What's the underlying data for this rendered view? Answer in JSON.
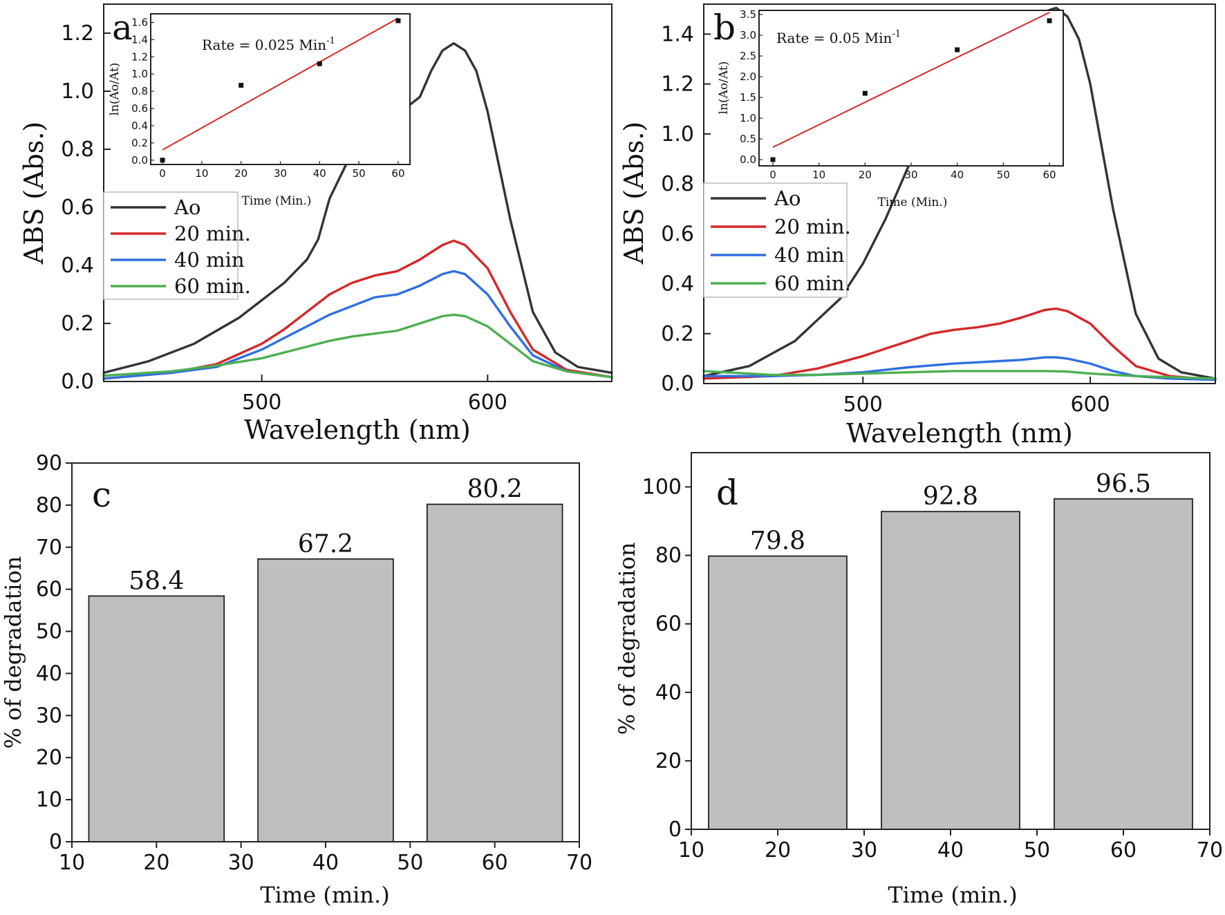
{
  "chart_data": [
    {
      "id": "a",
      "type": "line",
      "panel_label": "a",
      "xlabel": "Wavelength (nm)",
      "ylabel": "ABS (Abs.)",
      "xlim": [
        430,
        655
      ],
      "ylim": [
        0,
        1.3
      ],
      "xticks": [
        500,
        600
      ],
      "yticks": [
        0.0,
        0.2,
        0.4,
        0.6,
        0.8,
        1.0,
        1.2
      ],
      "ytick_labels": [
        "0.0",
        "0.2",
        "0.4",
        "0.6",
        "0.8",
        "1.0",
        "1.2"
      ],
      "legend": [
        "Ao",
        "20 min.",
        "40 min",
        "60 min."
      ],
      "legend_position": "mid-left",
      "series": [
        {
          "name": "Ao",
          "color": "#333333",
          "x": [
            430,
            450,
            470,
            490,
            500,
            510,
            520,
            525,
            530,
            540,
            550,
            560,
            570,
            575,
            580,
            585,
            590,
            595,
            600,
            610,
            620,
            630,
            640,
            655
          ],
          "y": [
            0.03,
            0.07,
            0.13,
            0.22,
            0.28,
            0.34,
            0.42,
            0.49,
            0.63,
            0.79,
            0.87,
            0.92,
            0.98,
            1.07,
            1.14,
            1.165,
            1.14,
            1.07,
            0.93,
            0.56,
            0.24,
            0.1,
            0.05,
            0.03
          ]
        },
        {
          "name": "20 min.",
          "color": "#d62728",
          "x": [
            430,
            460,
            480,
            500,
            510,
            520,
            530,
            540,
            550,
            560,
            570,
            580,
            585,
            590,
            600,
            610,
            620,
            635,
            655
          ],
          "y": [
            0.01,
            0.03,
            0.06,
            0.13,
            0.18,
            0.24,
            0.3,
            0.34,
            0.365,
            0.38,
            0.42,
            0.47,
            0.485,
            0.47,
            0.39,
            0.24,
            0.11,
            0.04,
            0.015
          ]
        },
        {
          "name": "40 min",
          "color": "#2f6fe0",
          "x": [
            430,
            460,
            480,
            500,
            510,
            520,
            530,
            540,
            550,
            560,
            570,
            580,
            585,
            590,
            600,
            610,
            620,
            635,
            655
          ],
          "y": [
            0.01,
            0.03,
            0.05,
            0.11,
            0.15,
            0.19,
            0.23,
            0.26,
            0.29,
            0.3,
            0.33,
            0.37,
            0.38,
            0.37,
            0.3,
            0.19,
            0.09,
            0.035,
            0.015
          ]
        },
        {
          "name": "60 min.",
          "color": "#4caf50",
          "x": [
            430,
            460,
            480,
            500,
            510,
            520,
            530,
            540,
            550,
            560,
            570,
            580,
            585,
            590,
            600,
            610,
            620,
            635,
            655
          ],
          "y": [
            0.02,
            0.035,
            0.055,
            0.08,
            0.1,
            0.12,
            0.14,
            0.155,
            0.165,
            0.175,
            0.2,
            0.225,
            0.23,
            0.225,
            0.19,
            0.13,
            0.07,
            0.035,
            0.015
          ]
        }
      ],
      "inset": {
        "type": "scatter",
        "xlabel": "Time (Min.)",
        "ylabel": "ln(Ao/At)",
        "annotation": "Rate = 0.025 Min",
        "annotation_sup": "-1",
        "xlim": [
          -3,
          63
        ],
        "ylim": [
          -0.05,
          1.7
        ],
        "xticks": [
          0,
          10,
          20,
          30,
          40,
          50,
          60
        ],
        "yticks": [
          0.0,
          0.2,
          0.4,
          0.6,
          0.8,
          1.0,
          1.2,
          1.4,
          1.6
        ],
        "ytick_labels": [
          "0.0",
          "0.2",
          "0.4",
          "0.6",
          "0.8",
          "1.0",
          "1.2",
          "1.4",
          "1.6"
        ],
        "points": {
          "x": [
            0,
            20,
            40,
            60
          ],
          "y": [
            0.0,
            0.87,
            1.12,
            1.62
          ]
        },
        "fit": {
          "color": "#d62728",
          "x": [
            0,
            60
          ],
          "y": [
            0.12,
            1.65
          ]
        }
      }
    },
    {
      "id": "b",
      "type": "line",
      "panel_label": "b",
      "xlabel": "Wavelength (nm)",
      "ylabel": "ABS (Abs.)",
      "xlim": [
        430,
        655
      ],
      "ylim": [
        0,
        1.52
      ],
      "xticks": [
        500,
        600
      ],
      "yticks": [
        0.0,
        0.2,
        0.4,
        0.6,
        0.8,
        1.0,
        1.2,
        1.4
      ],
      "ytick_labels": [
        "0.0",
        "0.2",
        "0.4",
        "0.6",
        "0.8",
        "1.0",
        "1.2",
        "1.4"
      ],
      "legend": [
        "Ao",
        "20 min.",
        "40 min",
        "60 min."
      ],
      "legend_position": "mid-left",
      "series": [
        {
          "name": "Ao",
          "color": "#333333",
          "x": [
            430,
            450,
            470,
            490,
            500,
            510,
            520,
            530,
            540,
            550,
            560,
            570,
            575,
            580,
            585,
            590,
            595,
            600,
            610,
            620,
            630,
            640,
            655
          ],
          "y": [
            0.03,
            0.07,
            0.17,
            0.34,
            0.48,
            0.66,
            0.87,
            1.03,
            1.1,
            1.17,
            1.22,
            1.36,
            1.44,
            1.49,
            1.505,
            1.47,
            1.38,
            1.2,
            0.7,
            0.28,
            0.1,
            0.045,
            0.02
          ]
        },
        {
          "name": "20 min.",
          "color": "#d62728",
          "x": [
            430,
            460,
            480,
            500,
            510,
            520,
            530,
            540,
            550,
            560,
            570,
            580,
            585,
            590,
            600,
            610,
            620,
            635,
            655
          ],
          "y": [
            0.02,
            0.03,
            0.06,
            0.11,
            0.14,
            0.17,
            0.2,
            0.215,
            0.225,
            0.24,
            0.265,
            0.295,
            0.3,
            0.29,
            0.24,
            0.15,
            0.07,
            0.03,
            0.015
          ]
        },
        {
          "name": "40 min",
          "color": "#2f6fe0",
          "x": [
            430,
            460,
            480,
            500,
            520,
            540,
            560,
            570,
            580,
            585,
            590,
            600,
            610,
            620,
            635,
            655
          ],
          "y": [
            0.03,
            0.03,
            0.035,
            0.045,
            0.065,
            0.08,
            0.09,
            0.095,
            0.105,
            0.105,
            0.1,
            0.08,
            0.05,
            0.03,
            0.02,
            0.015
          ]
        },
        {
          "name": "60 min.",
          "color": "#4caf50",
          "x": [
            430,
            460,
            480,
            500,
            520,
            540,
            560,
            580,
            590,
            600,
            620,
            655
          ],
          "y": [
            0.05,
            0.035,
            0.035,
            0.04,
            0.045,
            0.05,
            0.05,
            0.05,
            0.048,
            0.04,
            0.03,
            0.02
          ]
        }
      ],
      "inset": {
        "type": "scatter",
        "xlabel": "Time (Min.)",
        "ylabel": "ln(Ao/At)",
        "annotation": "Rate = 0.05 Min",
        "annotation_sup": "-1",
        "xlim": [
          -3,
          63
        ],
        "ylim": [
          -0.15,
          3.6
        ],
        "xticks": [
          0,
          10,
          20,
          30,
          40,
          50,
          60
        ],
        "yticks": [
          0.0,
          0.5,
          1.0,
          1.5,
          2.0,
          2.5,
          3.0,
          3.5
        ],
        "ytick_labels": [
          "0.0",
          "0.5",
          "1.0",
          "1.5",
          "2.0",
          "2.5",
          "3.0",
          "3.5"
        ],
        "points": {
          "x": [
            0,
            20,
            40,
            60
          ],
          "y": [
            0.0,
            1.6,
            2.65,
            3.35
          ]
        },
        "fit": {
          "color": "#d62728",
          "x": [
            0,
            60
          ],
          "y": [
            0.3,
            3.55
          ]
        }
      }
    },
    {
      "id": "c",
      "type": "bar",
      "panel_label": "c",
      "xlabel": "Time (min.)",
      "ylabel": "% of degradation",
      "xlim": [
        10,
        70
      ],
      "ylim": [
        0,
        90
      ],
      "xticks": [
        10,
        20,
        30,
        40,
        50,
        60,
        70
      ],
      "yticks": [
        0,
        10,
        20,
        30,
        40,
        50,
        60,
        70,
        80,
        90
      ],
      "categories": [
        20,
        40,
        60
      ],
      "bar_width": 16,
      "values": [
        58.4,
        67.2,
        80.2
      ],
      "value_labels": [
        "58.4",
        "67.2",
        "80.2"
      ],
      "bar_color": "#bfbfbf"
    },
    {
      "id": "d",
      "type": "bar",
      "panel_label": "d",
      "xlabel": "Time (min.)",
      "ylabel": "% of degradation",
      "xlim": [
        10,
        70
      ],
      "ylim": [
        0,
        110
      ],
      "xticks": [
        10,
        20,
        30,
        40,
        50,
        60,
        70
      ],
      "yticks": [
        0,
        20,
        40,
        60,
        80,
        100
      ],
      "categories": [
        20,
        40,
        60
      ],
      "bar_width": 16,
      "values": [
        79.8,
        92.8,
        96.5
      ],
      "value_labels": [
        "79.8",
        "92.8",
        "96.5"
      ],
      "bar_color": "#bfbfbf"
    }
  ]
}
